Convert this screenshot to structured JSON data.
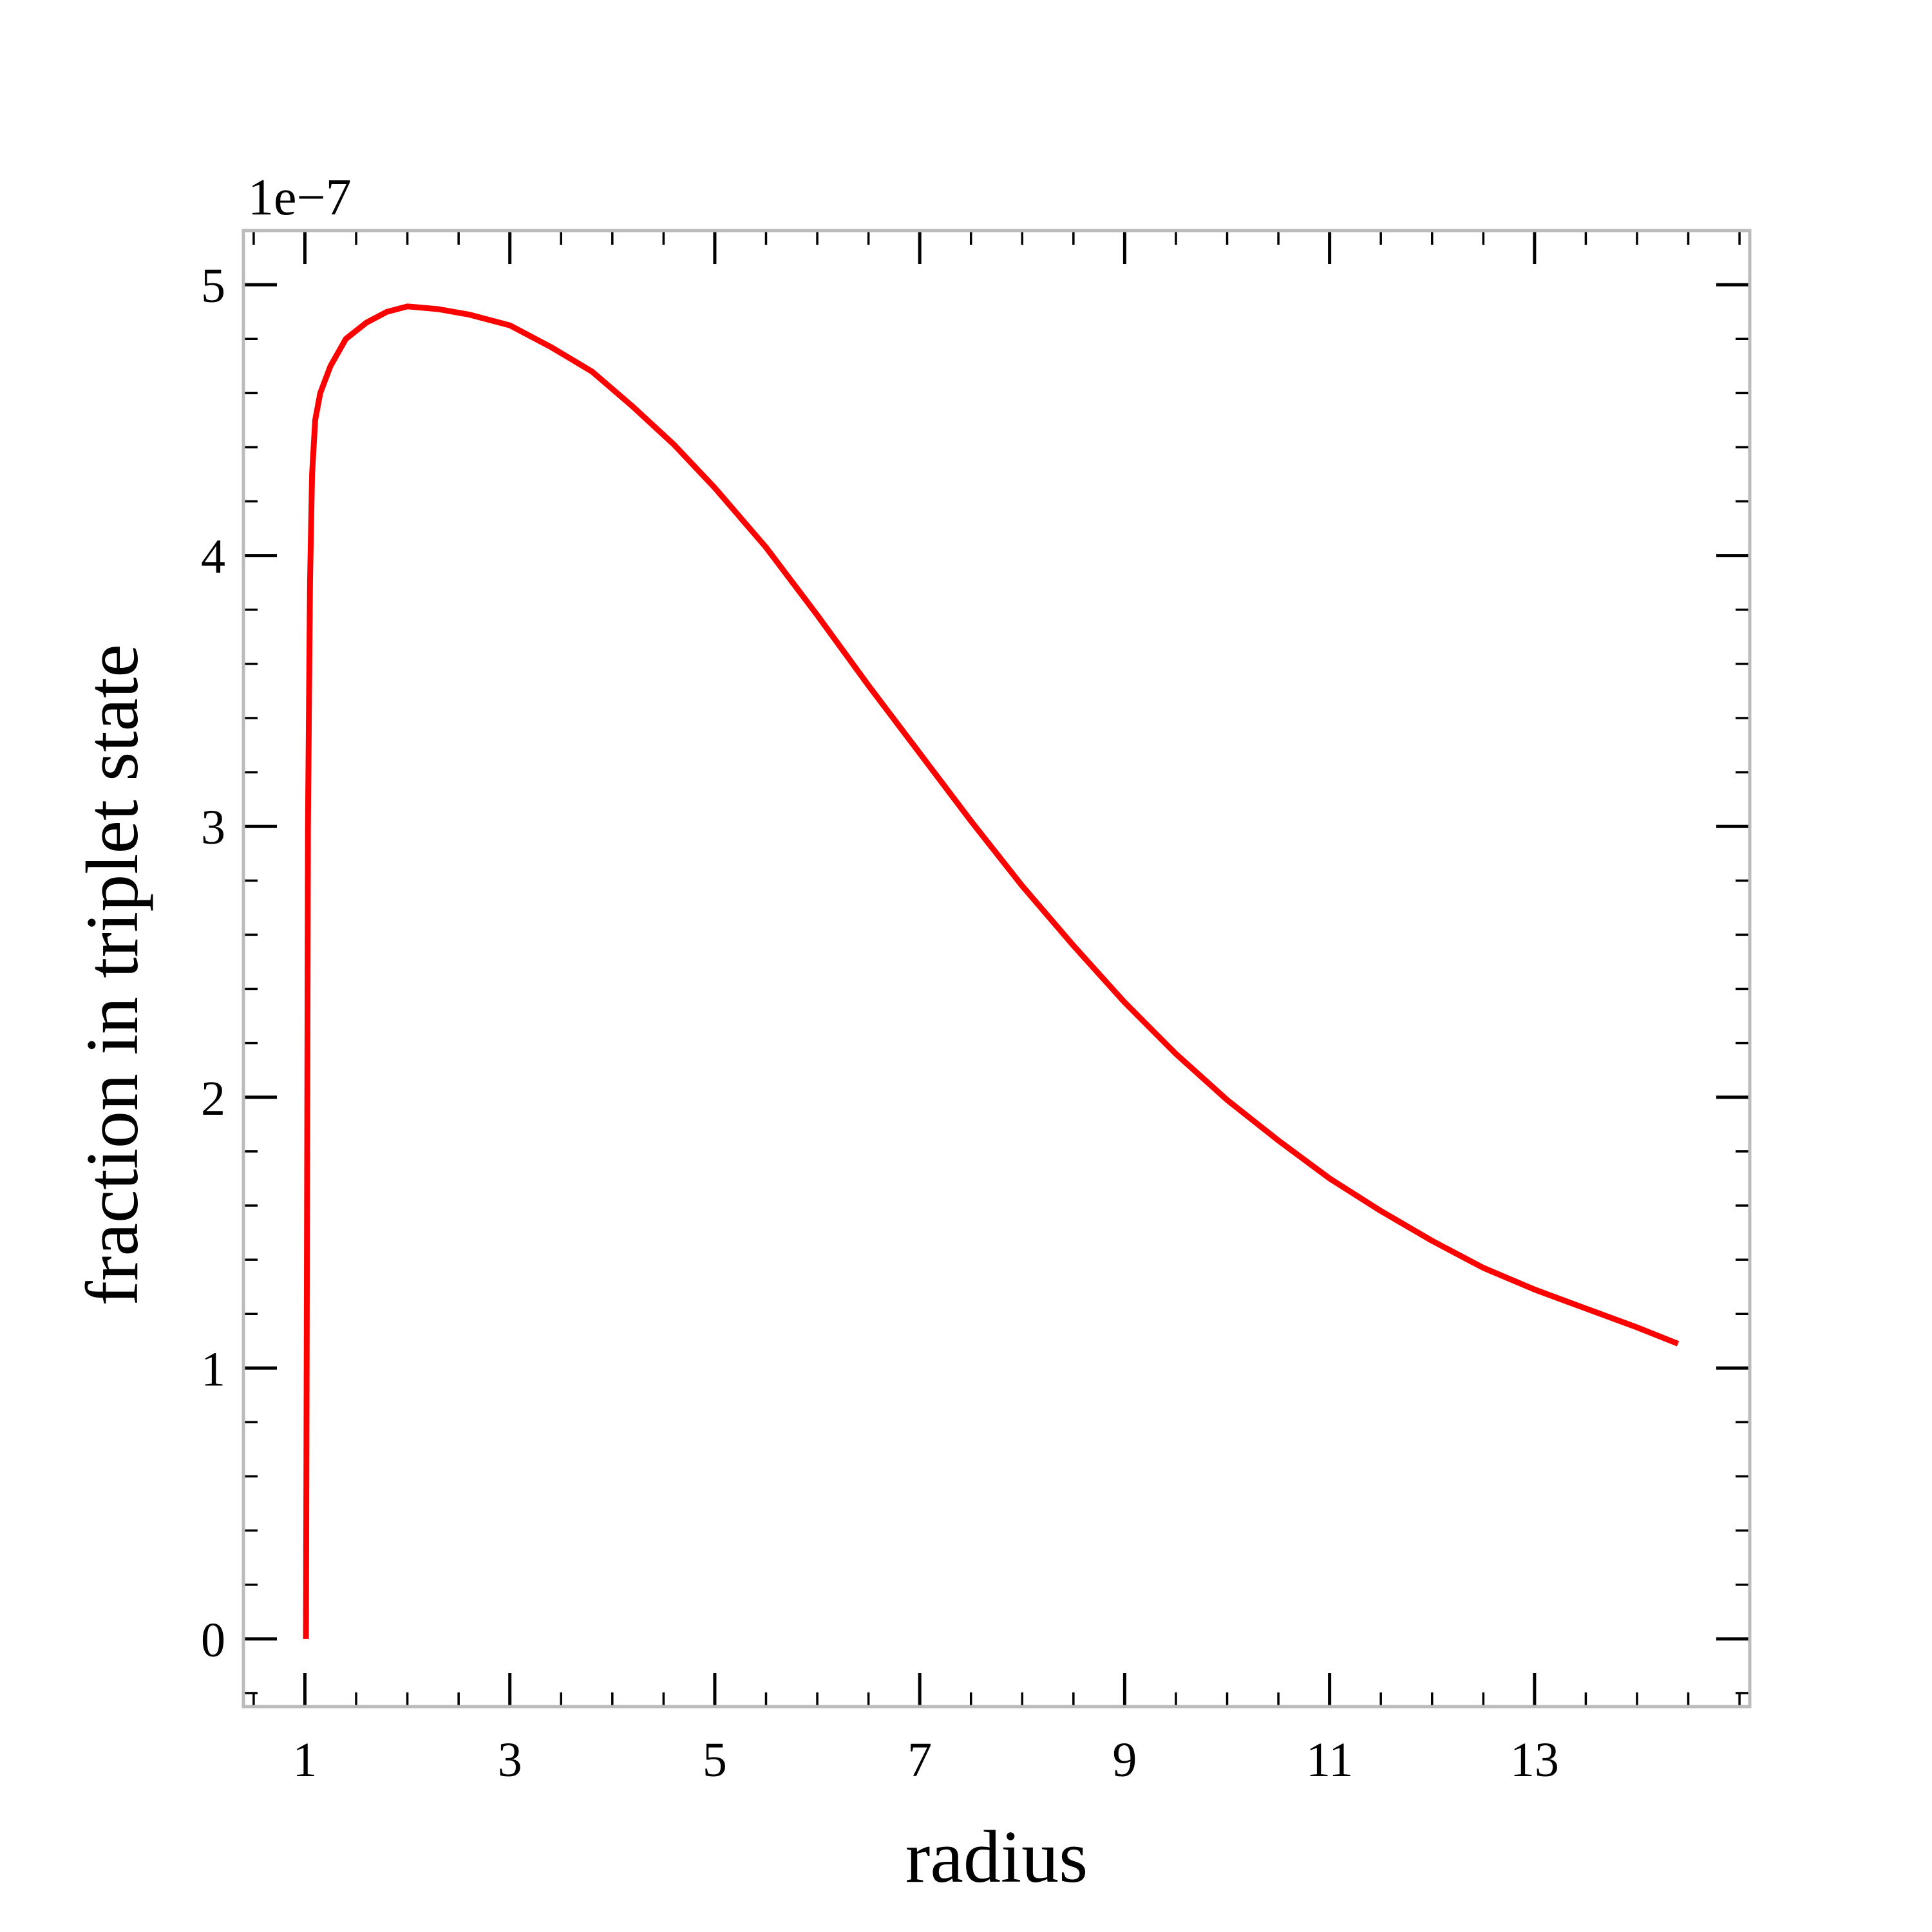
{
  "chart_data": {
    "type": "line",
    "title": "",
    "xlabel": "radius",
    "ylabel": "fraction in triplet state",
    "y_offset_label": "1e−7",
    "xlim": [
      0.4,
      15.1
    ],
    "ylim": [
      -0.25,
      5.2
    ],
    "x_ticks": [
      1,
      3,
      5,
      7,
      9,
      11,
      13
    ],
    "x_tick_labels": [
      "1",
      "3",
      "5",
      "7",
      "9",
      "11",
      "13"
    ],
    "y_ticks": [
      0,
      1,
      2,
      3,
      4,
      5
    ],
    "y_tick_labels": [
      "0",
      "1",
      "2",
      "3",
      "4",
      "5"
    ],
    "grid": false,
    "series_color": "#ff0000",
    "frame_color": "#bbbbbb",
    "series": [
      {
        "points": [
          [
            1.01,
            0.0
          ],
          [
            1.02,
            1.5
          ],
          [
            1.03,
            3.0
          ],
          [
            1.05,
            3.9
          ],
          [
            1.07,
            4.3
          ],
          [
            1.1,
            4.5
          ],
          [
            1.15,
            4.6
          ],
          [
            1.25,
            4.7
          ],
          [
            1.4,
            4.8
          ],
          [
            1.6,
            4.86
          ],
          [
            1.8,
            4.9
          ],
          [
            2.0,
            4.92
          ],
          [
            2.3,
            4.91
          ],
          [
            2.6,
            4.89
          ],
          [
            3.0,
            4.85
          ],
          [
            3.4,
            4.77
          ],
          [
            3.8,
            4.68
          ],
          [
            4.2,
            4.55
          ],
          [
            4.6,
            4.41
          ],
          [
            5.0,
            4.25
          ],
          [
            5.5,
            4.03
          ],
          [
            6.0,
            3.78
          ],
          [
            6.5,
            3.52
          ],
          [
            7.0,
            3.27
          ],
          [
            7.5,
            3.02
          ],
          [
            8.0,
            2.78
          ],
          [
            8.5,
            2.56
          ],
          [
            9.0,
            2.35
          ],
          [
            9.5,
            2.16
          ],
          [
            10.0,
            1.99
          ],
          [
            10.5,
            1.84
          ],
          [
            11.0,
            1.7
          ],
          [
            11.5,
            1.58
          ],
          [
            12.0,
            1.47
          ],
          [
            12.5,
            1.37
          ],
          [
            13.0,
            1.29
          ],
          [
            13.5,
            1.22
          ],
          [
            14.0,
            1.15
          ],
          [
            14.4,
            1.09
          ]
        ]
      }
    ]
  }
}
